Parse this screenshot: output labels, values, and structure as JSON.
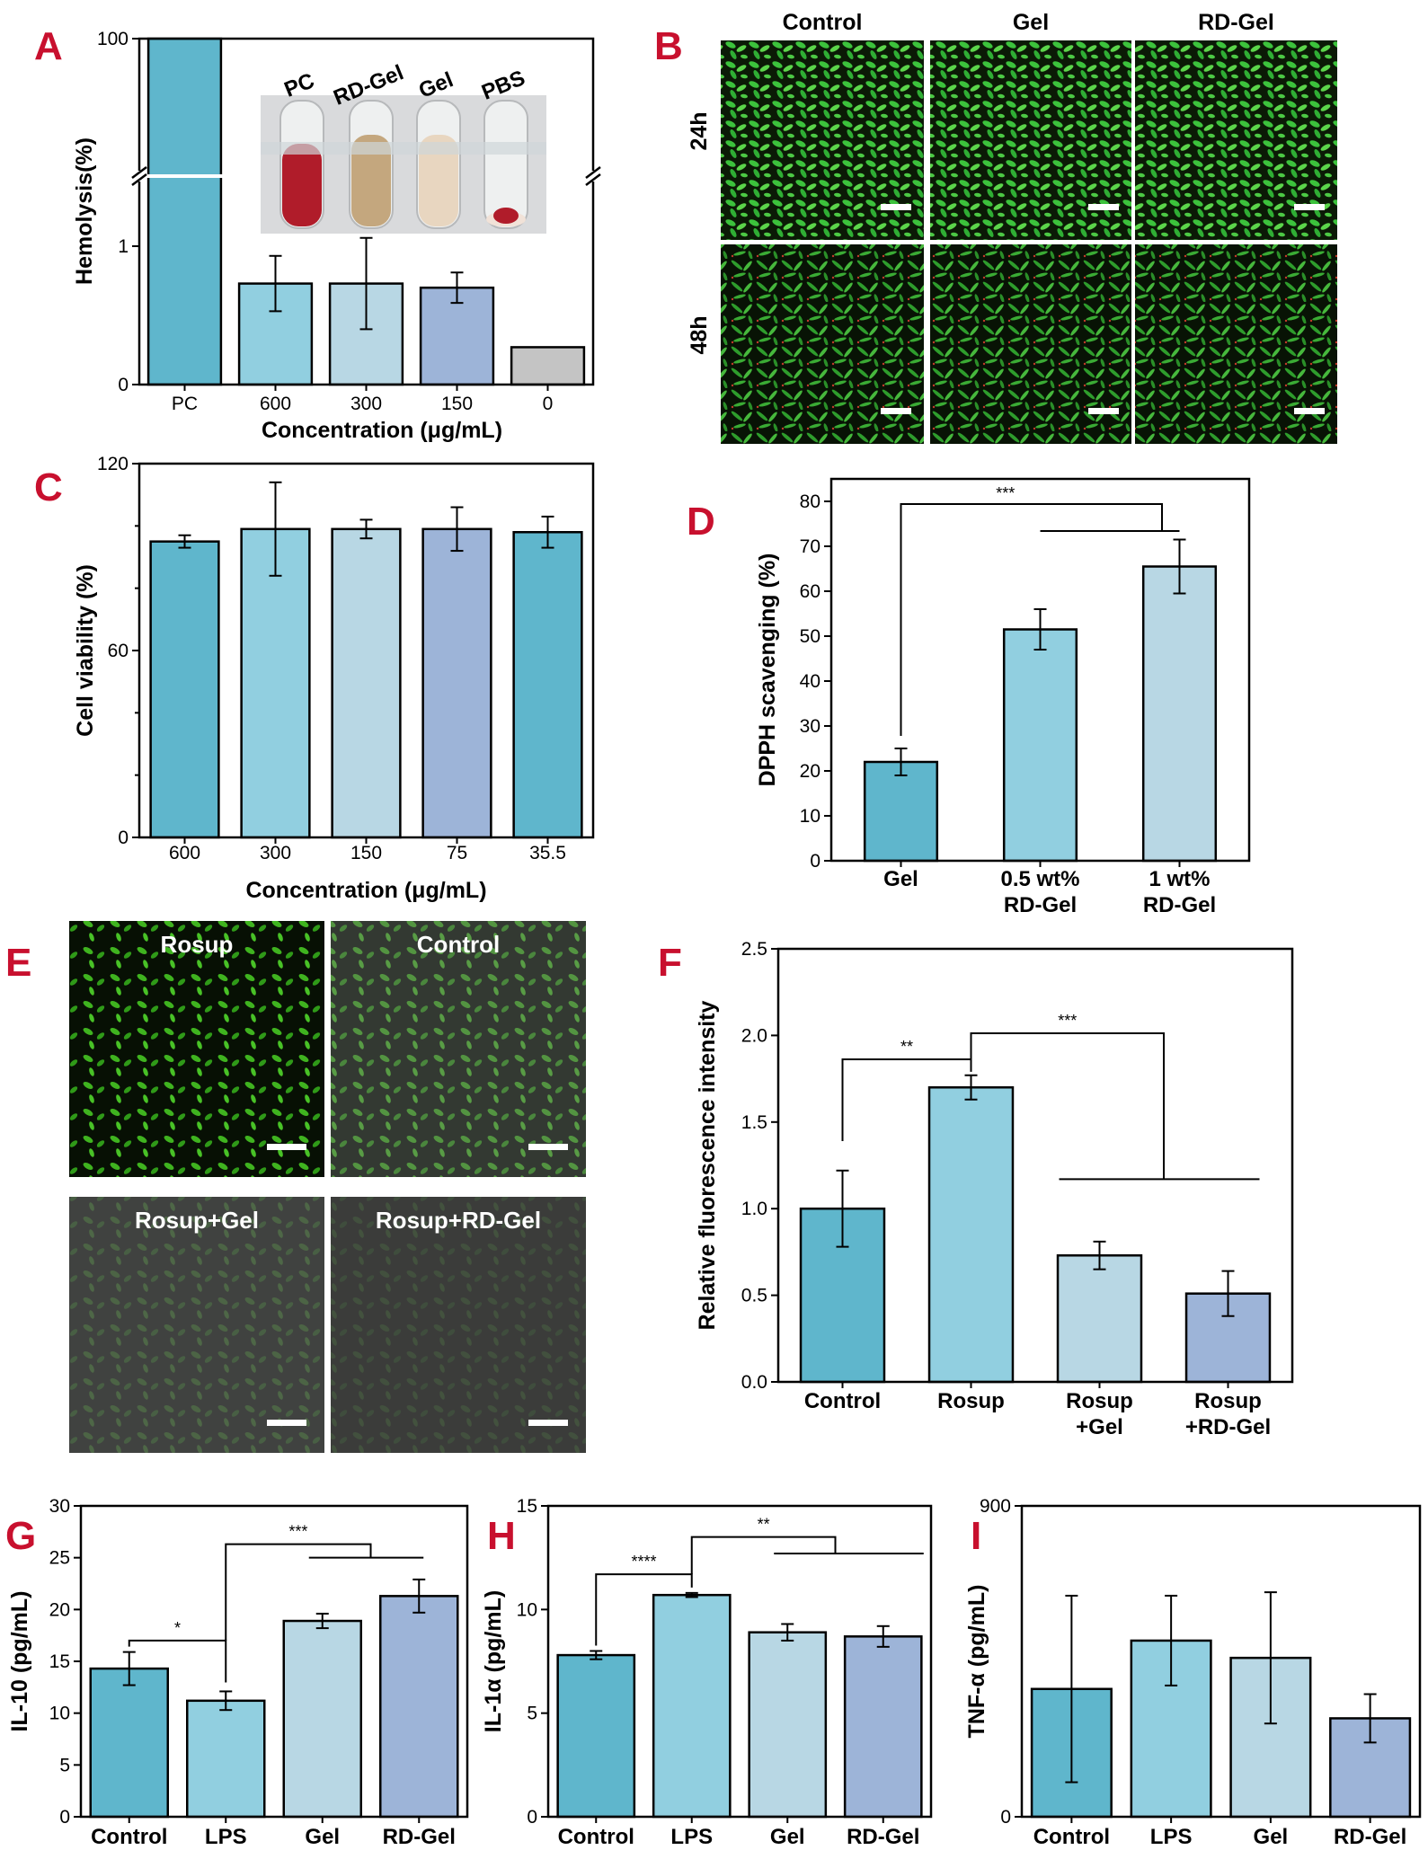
{
  "colors": {
    "c1": "#5fb6cc",
    "c2": "#91cfe0",
    "c3": "#b8d7e4",
    "c4": "#9db4d8",
    "gray": "#c4c4c4",
    "letter": "#c8102e",
    "cell_green": "#37b24a",
    "ros_green": "#2f9a24"
  },
  "panels": {
    "A": {
      "letter": "A",
      "inset_tube_labels": [
        "PC",
        "RD-Gel",
        "Gel",
        "PBS"
      ],
      "inset_tube_colors": [
        "#b01c2a",
        "#c4a77e",
        "#e8d6c0",
        "#f1e2d8"
      ]
    },
    "B": {
      "letter": "B",
      "columns": [
        "Control",
        "Gel",
        "RD-Gel"
      ],
      "rows": [
        "24h",
        "48h"
      ]
    },
    "C": {
      "letter": "C"
    },
    "D": {
      "letter": "D"
    },
    "E": {
      "letter": "E",
      "labels": [
        "Rosup",
        "Control",
        "Rosup+Gel",
        "Rosup+RD-Gel"
      ],
      "brightness": [
        1.0,
        0.75,
        0.45,
        0.35
      ]
    },
    "F": {
      "letter": "F"
    },
    "G": {
      "letter": "G"
    },
    "H": {
      "letter": "H"
    },
    "I": {
      "letter": "I"
    }
  },
  "chart_data": [
    {
      "id": "A",
      "type": "bar",
      "categories": [
        "PC",
        "600",
        "300",
        "150",
        "0"
      ],
      "values": [
        100,
        0.73,
        0.73,
        0.7,
        0.27
      ],
      "errors": [
        0,
        0.2,
        0.33,
        0.11,
        0.01
      ],
      "xlabel": "Concentration (μg/mL)",
      "ylabel": "Hemolysis(%)",
      "axis_break": true,
      "lower_ylim": [
        0,
        1.5
      ],
      "upper_ylim": [
        99,
        100
      ],
      "yticks": [
        "0",
        "1",
        "100"
      ]
    },
    {
      "id": "C",
      "type": "bar",
      "categories": [
        "600",
        "300",
        "150",
        "75",
        "35.5"
      ],
      "values": [
        95,
        99,
        99,
        99,
        98
      ],
      "errors": [
        2,
        15,
        3,
        7,
        5
      ],
      "xlabel": "Concentration (μg/mL)",
      "ylabel": "Cell viability (%)",
      "ylim": [
        0,
        120
      ],
      "yticks": [
        "0",
        "60",
        "120"
      ]
    },
    {
      "id": "D",
      "type": "bar",
      "categories": [
        [
          "Gel"
        ],
        [
          "0.5 wt%",
          "RD-Gel"
        ],
        [
          "1 wt%",
          "RD-Gel"
        ]
      ],
      "values": [
        22,
        51.5,
        65.5
      ],
      "errors": [
        3,
        4.5,
        6
      ],
      "ylabel": "DPPH scavenging (%)",
      "ylim": [
        0,
        85
      ],
      "yticks": [
        "0",
        "10",
        "20",
        "30",
        "40",
        "50",
        "60",
        "70",
        "80"
      ],
      "significance": [
        "***"
      ]
    },
    {
      "id": "F",
      "type": "bar",
      "categories": [
        [
          "Control"
        ],
        [
          "Rosup"
        ],
        [
          "Rosup",
          "+Gel"
        ],
        [
          "Rosup",
          "+RD-Gel"
        ]
      ],
      "values": [
        1.0,
        1.7,
        0.73,
        0.51
      ],
      "errors": [
        0.22,
        0.07,
        0.08,
        0.13
      ],
      "ylabel": "Relative fluorescence intensity",
      "ylim": [
        0,
        2.5
      ],
      "yticks": [
        "0.0",
        "0.5",
        "1.0",
        "1.5",
        "2.0",
        "2.5"
      ],
      "significance": [
        "**",
        "***"
      ]
    },
    {
      "id": "G",
      "type": "bar",
      "categories": [
        "Control",
        "LPS",
        "Gel",
        "RD-Gel"
      ],
      "values": [
        14.3,
        11.2,
        18.9,
        21.3
      ],
      "errors": [
        1.6,
        0.9,
        0.7,
        1.6
      ],
      "ylabel": "IL-10 (pg/mL)",
      "ylim": [
        0,
        30
      ],
      "yticks": [
        "0",
        "5",
        "10",
        "15",
        "20",
        "25",
        "30"
      ],
      "significance": [
        "*",
        "***"
      ]
    },
    {
      "id": "H",
      "type": "bar",
      "categories": [
        "Control",
        "LPS",
        "Gel",
        "RD-Gel"
      ],
      "values": [
        7.8,
        10.7,
        8.9,
        8.7
      ],
      "errors": [
        0.2,
        0.1,
        0.4,
        0.5
      ],
      "ylabel": "IL-1α (pg/mL)",
      "ylim": [
        0,
        15
      ],
      "yticks": [
        "0",
        "5",
        "10",
        "15"
      ],
      "significance": [
        "****",
        "**"
      ]
    },
    {
      "id": "I",
      "type": "bar",
      "categories": [
        "Control",
        "LPS",
        "Gel",
        "RD-Gel"
      ],
      "values": [
        370,
        510,
        460,
        285
      ],
      "errors": [
        270,
        130,
        190,
        70
      ],
      "ylabel": "TNF-α (pg/mL)",
      "ylim": [
        0,
        900
      ],
      "yticks": [
        "0",
        "900"
      ]
    }
  ]
}
